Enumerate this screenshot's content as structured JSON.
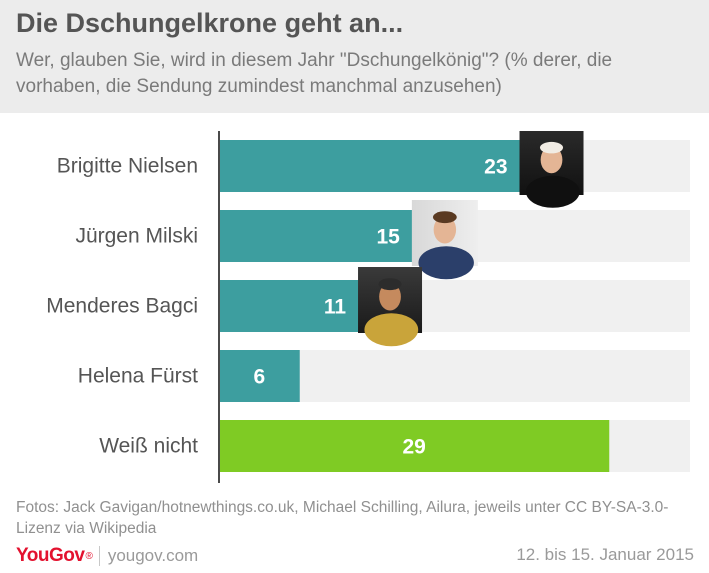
{
  "header": {
    "title": "Die Dschungelkrone geht an...",
    "subtitle": "Wer, glauben Sie, wird in diesem Jahr \"Dschungelkönig\"? (% derer, die vorhaben, die Sendung zumindest manchmal anzusehen)"
  },
  "colors": {
    "bar_primary": "#3d9e9f",
    "bar_highlight": "#7fcb24",
    "track": "#f0f0f0",
    "axis": "#4a4a4a",
    "label_text": "#555555",
    "value_text": "#ffffff"
  },
  "chart_data": {
    "type": "bar",
    "orientation": "horizontal",
    "categories": [
      "Brigitte Nielsen",
      "Jürgen Milski",
      "Menderes Bagci",
      "Helena Fürst",
      "Weiß nicht"
    ],
    "values": [
      23,
      15,
      11,
      6,
      29
    ],
    "value_labels": [
      "23",
      "15",
      "11",
      "6",
      "29"
    ],
    "highlight": [
      false,
      false,
      false,
      false,
      true
    ],
    "portraits": [
      true,
      true,
      true,
      false,
      false
    ],
    "xlim": [
      0,
      35
    ],
    "grid": false
  },
  "footer": {
    "credits": "Fotos: Jack Gavigan/hotnewthings.co.uk, Michael Schilling, Ailura, jeweils unter CC BY-SA-3.0-Lizenz via Wikipedia",
    "brand": "YouGov",
    "site": "yougov.com",
    "date": "12. bis 15. Januar 2015"
  }
}
